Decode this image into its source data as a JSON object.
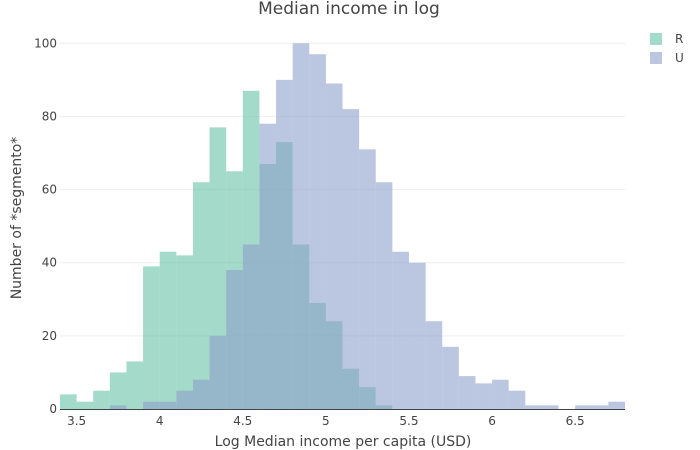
{
  "chart_data": {
    "type": "histogram",
    "title": "Median income in log",
    "xlabel": "Log Median income per capita (USD)",
    "ylabel": "Number of *segmento*",
    "xlim": [
      3.4,
      6.8
    ],
    "ylim": [
      0,
      105
    ],
    "bin_width": 0.1,
    "x_ticks": [
      {
        "value": 3.5,
        "label": "3.5"
      },
      {
        "value": 4,
        "label": "4"
      },
      {
        "value": 4.5,
        "label": "4.5"
      },
      {
        "value": 5,
        "label": "5"
      },
      {
        "value": 5.5,
        "label": "5.5"
      },
      {
        "value": 6,
        "label": "6"
      },
      {
        "value": 6.5,
        "label": "6.5"
      }
    ],
    "y_ticks": [
      {
        "value": 0,
        "label": "0"
      },
      {
        "value": 20,
        "label": "20"
      },
      {
        "value": 40,
        "label": "40"
      },
      {
        "value": 60,
        "label": "60"
      },
      {
        "value": 80,
        "label": "80"
      },
      {
        "value": 100,
        "label": "100"
      }
    ],
    "grid": true,
    "legend_position": "top-right",
    "series": [
      {
        "name": "R",
        "color": "#66c2a5",
        "bins": [
          {
            "x0": 3.4,
            "value": 4
          },
          {
            "x0": 3.5,
            "value": 2
          },
          {
            "x0": 3.6,
            "value": 5
          },
          {
            "x0": 3.7,
            "value": 10
          },
          {
            "x0": 3.8,
            "value": 13
          },
          {
            "x0": 3.9,
            "value": 39
          },
          {
            "x0": 4.0,
            "value": 43
          },
          {
            "x0": 4.1,
            "value": 42
          },
          {
            "x0": 4.2,
            "value": 62
          },
          {
            "x0": 4.3,
            "value": 77
          },
          {
            "x0": 4.4,
            "value": 65
          },
          {
            "x0": 4.5,
            "value": 87
          },
          {
            "x0": 4.6,
            "value": 67
          },
          {
            "x0": 4.7,
            "value": 73
          },
          {
            "x0": 4.8,
            "value": 45
          },
          {
            "x0": 4.9,
            "value": 29
          },
          {
            "x0": 5.0,
            "value": 24
          },
          {
            "x0": 5.1,
            "value": 11
          },
          {
            "x0": 5.2,
            "value": 6
          },
          {
            "x0": 5.3,
            "value": 1
          }
        ]
      },
      {
        "name": "U",
        "color": "#8da0cb",
        "bins": [
          {
            "x0": 3.7,
            "value": 1
          },
          {
            "x0": 3.8,
            "value": 0
          },
          {
            "x0": 3.9,
            "value": 2
          },
          {
            "x0": 4.0,
            "value": 2
          },
          {
            "x0": 4.1,
            "value": 5
          },
          {
            "x0": 4.2,
            "value": 8
          },
          {
            "x0": 4.3,
            "value": 20
          },
          {
            "x0": 4.4,
            "value": 38
          },
          {
            "x0": 4.5,
            "value": 45
          },
          {
            "x0": 4.6,
            "value": 78
          },
          {
            "x0": 4.7,
            "value": 90
          },
          {
            "x0": 4.8,
            "value": 100
          },
          {
            "x0": 4.9,
            "value": 97
          },
          {
            "x0": 5.0,
            "value": 89
          },
          {
            "x0": 5.1,
            "value": 82
          },
          {
            "x0": 5.2,
            "value": 71
          },
          {
            "x0": 5.3,
            "value": 62
          },
          {
            "x0": 5.4,
            "value": 43
          },
          {
            "x0": 5.5,
            "value": 40
          },
          {
            "x0": 5.6,
            "value": 24
          },
          {
            "x0": 5.7,
            "value": 17
          },
          {
            "x0": 5.8,
            "value": 9
          },
          {
            "x0": 5.9,
            "value": 7
          },
          {
            "x0": 6.0,
            "value": 8
          },
          {
            "x0": 6.1,
            "value": 5
          },
          {
            "x0": 6.2,
            "value": 1
          },
          {
            "x0": 6.3,
            "value": 1
          },
          {
            "x0": 6.4,
            "value": 0
          },
          {
            "x0": 6.5,
            "value": 1
          },
          {
            "x0": 6.6,
            "value": 1
          },
          {
            "x0": 6.7,
            "value": 2
          }
        ]
      }
    ]
  }
}
